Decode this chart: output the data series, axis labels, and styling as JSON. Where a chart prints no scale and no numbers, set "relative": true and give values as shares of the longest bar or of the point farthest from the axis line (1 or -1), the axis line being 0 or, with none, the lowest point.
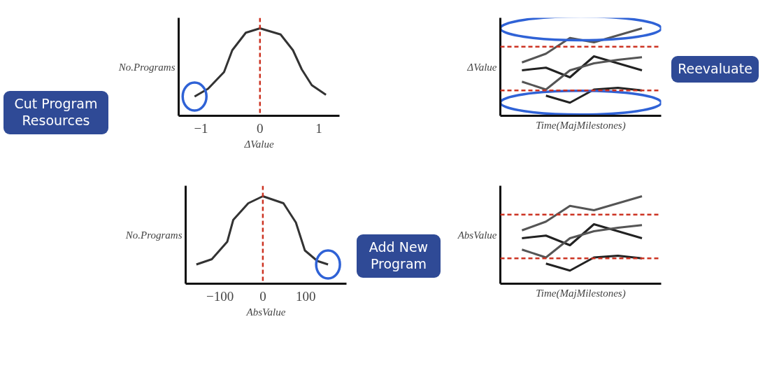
{
  "chart_data": [
    {
      "type": "line",
      "xlabel": "ΔValue",
      "ylabel": "No.Programs",
      "relative": true,
      "tick_labels": "x",
      "xlim": [
        -1.38,
        1.35
      ],
      "xticks": [
        -1,
        0,
        1
      ],
      "x": [
        -1.11,
        -0.88,
        -0.61,
        -0.47,
        -0.24,
        0,
        0.35,
        0.56,
        0.71,
        0.88,
        1.12
      ],
      "series": [
        {
          "color": "#333333",
          "values": [
            0.22,
            0.31,
            0.5,
            0.75,
            0.95,
            1,
            0.93,
            0.75,
            0.53,
            0.35,
            0.24
          ]
        }
      ],
      "ref_lines": [
        {
          "axis": "x",
          "value": 0,
          "color": "#cc3322",
          "line_style": "dashed"
        }
      ],
      "annotations": [
        "Cut Program\nResources"
      ]
    },
    {
      "type": "line",
      "xlabel": "Time(MajMilestones)",
      "ylabel": "ΔValue",
      "relative": true,
      "tick_labels": false,
      "categories": [
        null,
        null,
        null,
        null,
        null,
        null
      ],
      "series": [
        {
          "color": "#555555",
          "values": [
            0.61,
            0.71,
            0.89,
            0.84,
            0.92,
            1.0
          ]
        },
        {
          "color": "#222222",
          "values": [
            0.52,
            0.55,
            0.44,
            0.68,
            0.6,
            0.52
          ]
        },
        {
          "color": "#555555",
          "values": [
            0.39,
            0.3,
            0.52,
            0.6,
            0.64,
            0.67
          ]
        },
        {
          "color": "#222222",
          "values": [
            null,
            0.23,
            0.15,
            0.3,
            0.32,
            0.29
          ]
        }
      ],
      "ref_lines": [
        {
          "axis": "y",
          "value": 0.79,
          "color": "#cc3322",
          "line_style": "dashed"
        },
        {
          "axis": "y",
          "value": 0.29,
          "color": "#cc3322",
          "line_style": "dashed"
        }
      ],
      "annotations": [
        "Reevaluate"
      ]
    },
    {
      "type": "line",
      "xlabel": "AbsValue",
      "ylabel": "No.Programs",
      "relative": true,
      "tick_labels": "x",
      "xlim": [
        -180,
        195
      ],
      "xticks": [
        -100,
        0,
        100
      ],
      "x": [
        -155,
        -119,
        -83,
        -69,
        -34,
        0,
        48,
        77,
        98,
        127,
        152
      ],
      "series": [
        {
          "color": "#333333",
          "values": [
            0.22,
            0.28,
            0.48,
            0.73,
            0.92,
            1,
            0.92,
            0.7,
            0.38,
            0.26,
            0.22
          ]
        }
      ],
      "ref_lines": [
        {
          "axis": "x",
          "value": 0,
          "color": "#cc3322",
          "line_style": "dashed"
        }
      ],
      "annotations": [
        "Add New\nProgram"
      ]
    },
    {
      "type": "line",
      "xlabel": "Time(MajMilestones)",
      "ylabel": "AbsValue",
      "relative": true,
      "tick_labels": false,
      "categories": [
        null,
        null,
        null,
        null,
        null,
        null
      ],
      "series": [
        {
          "color": "#555555",
          "values": [
            0.61,
            0.71,
            0.89,
            0.84,
            0.92,
            1.0
          ]
        },
        {
          "color": "#222222",
          "values": [
            0.52,
            0.55,
            0.44,
            0.68,
            0.6,
            0.52
          ]
        },
        {
          "color": "#555555",
          "values": [
            0.39,
            0.3,
            0.52,
            0.6,
            0.64,
            0.67
          ]
        },
        {
          "color": "#222222",
          "values": [
            null,
            0.23,
            0.15,
            0.3,
            0.32,
            0.29
          ]
        }
      ],
      "ref_lines": [
        {
          "axis": "y",
          "value": 0.79,
          "color": "#cc3322",
          "line_style": "dashed"
        },
        {
          "axis": "y",
          "value": 0.29,
          "color": "#cc3322",
          "line_style": "dashed"
        }
      ]
    }
  ]
}
